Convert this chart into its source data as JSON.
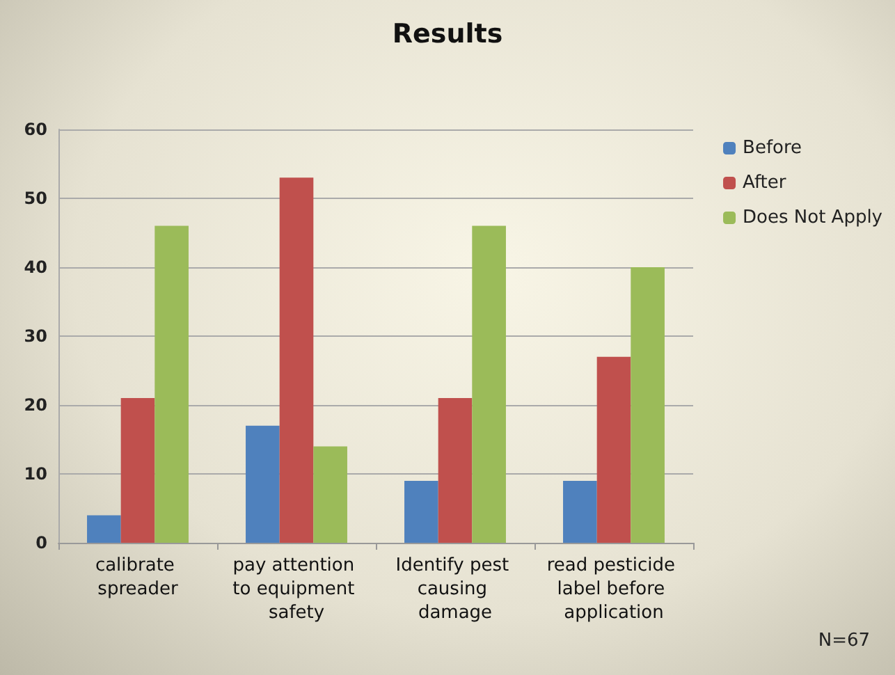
{
  "chart_data": {
    "type": "bar",
    "title": "Results",
    "categories": [
      "calibrate spreader",
      "pay attention to equipment safety",
      "Identify pest causing damage",
      "read pesticide label before application"
    ],
    "series": [
      {
        "name": "Before",
        "color": "#4f81bd",
        "values": [
          4,
          17,
          9,
          9
        ]
      },
      {
        "name": "After",
        "color": "#c0504d",
        "values": [
          21,
          53,
          21,
          27
        ]
      },
      {
        "name": "Does Not Apply",
        "color": "#9bbb59",
        "values": [
          46,
          14,
          46,
          40
        ]
      }
    ],
    "ylim": [
      0,
      60
    ],
    "yticks": [
      0,
      10,
      20,
      30,
      40,
      50,
      60
    ],
    "grid": "y",
    "legend": "right",
    "annotations": [
      "N=67"
    ]
  }
}
